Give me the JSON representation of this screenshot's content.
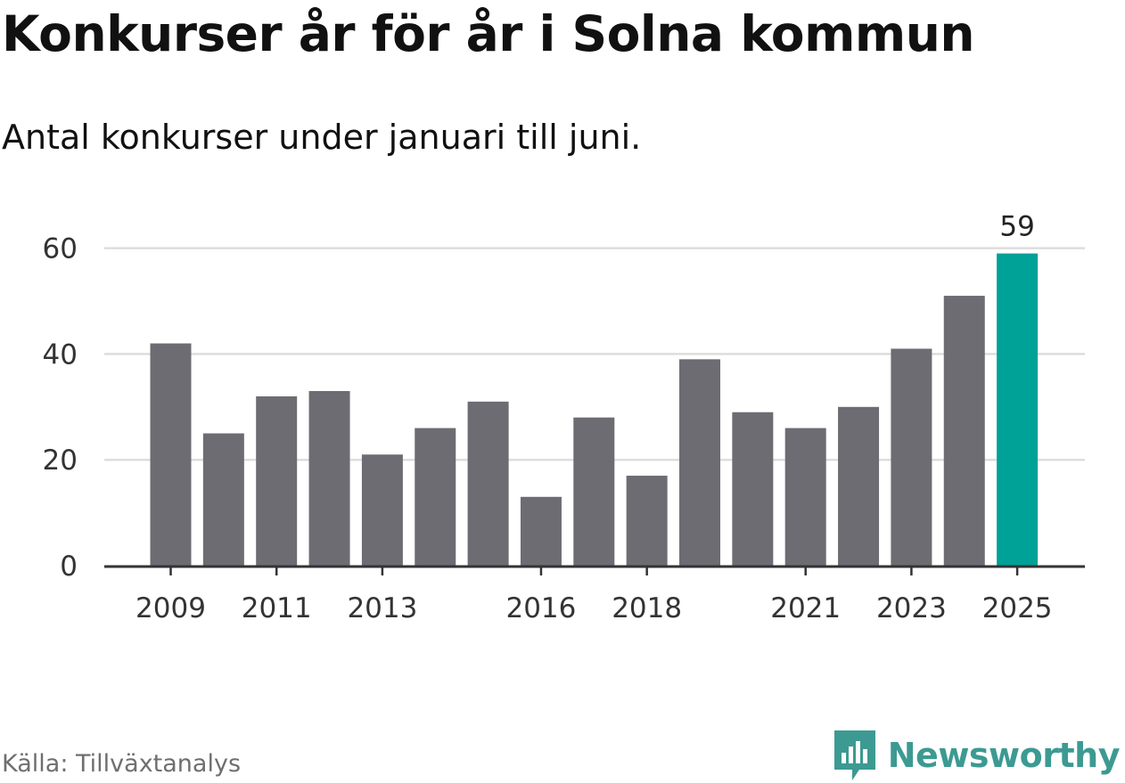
{
  "title": "Konkurser år för år i Solna kommun",
  "subtitle": "Antal konkurser under januari till juni.",
  "source": "Källa: Tillväxtanalys",
  "brand": "Newsworthy",
  "colors": {
    "bar": "#6d6c72",
    "highlight": "#00a197",
    "grid": "#dddddd",
    "axis": "#333333",
    "brand": "#3c9a92"
  },
  "chart_data": {
    "type": "bar",
    "categories": [
      "2009",
      "2010",
      "2011",
      "2012",
      "2013",
      "2014",
      "2015",
      "2016",
      "2017",
      "2018",
      "2019",
      "2020",
      "2021",
      "2022",
      "2023",
      "2024",
      "2025"
    ],
    "values": [
      42,
      25,
      32,
      33,
      21,
      26,
      31,
      13,
      28,
      17,
      39,
      29,
      26,
      30,
      41,
      51,
      59
    ],
    "x_tick_labels": [
      "2009",
      "2011",
      "2013",
      "2016",
      "2018",
      "2021",
      "2023",
      "2025"
    ],
    "y_ticks": [
      "0",
      "20",
      "40",
      "60"
    ],
    "ylim": [
      0,
      66
    ],
    "highlight_index": 16,
    "data_labels": [
      {
        "index": 16,
        "text": "59"
      }
    ],
    "grid": true,
    "legend": "none"
  }
}
